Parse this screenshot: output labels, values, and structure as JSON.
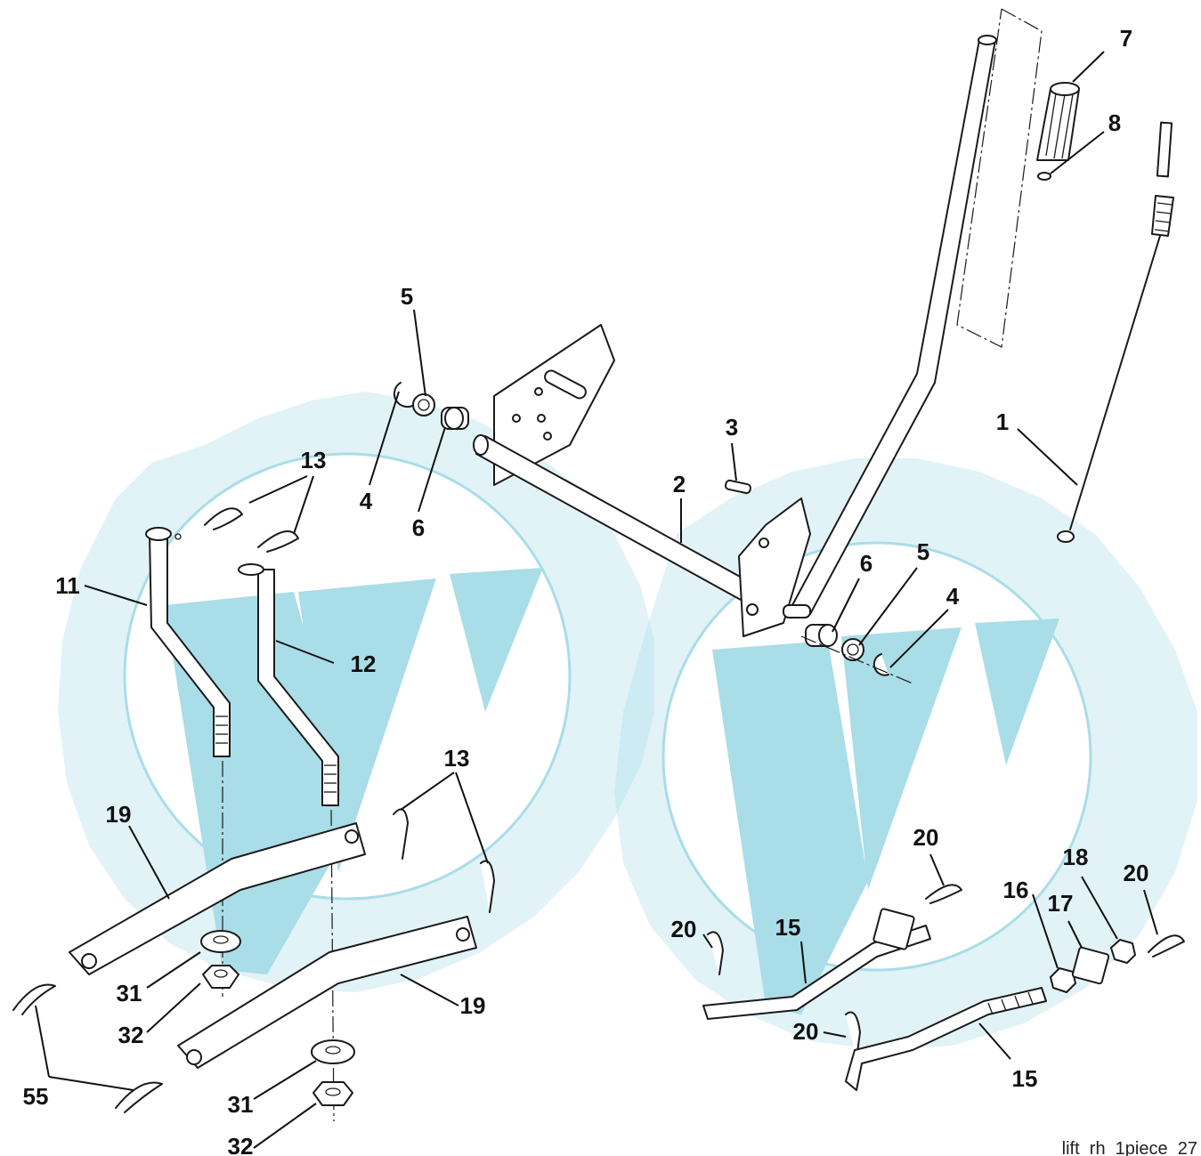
{
  "labels": {
    "p1": "1",
    "p2": "2",
    "p3": "3",
    "p4a": "4",
    "p4b": "4",
    "p5a": "5",
    "p5b": "5",
    "p6a": "6",
    "p6b": "6",
    "p7": "7",
    "p8": "8",
    "p11": "11",
    "p12": "12",
    "p13a": "13",
    "p13b": "13",
    "p15a": "15",
    "p15b": "15",
    "p16": "16",
    "p17": "17",
    "p18": "18",
    "p19a": "19",
    "p19b": "19",
    "p20a": "20",
    "p20b": "20",
    "p20c": "20",
    "p20d": "20",
    "p31a": "31",
    "p31b": "31",
    "p32a": "32",
    "p32b": "32",
    "p55": "55"
  },
  "caption": "lift_rh_1piece_27",
  "colors": {
    "watermark": "#a9dde8",
    "line": "#1a1a1a",
    "background": "#ffffff"
  }
}
